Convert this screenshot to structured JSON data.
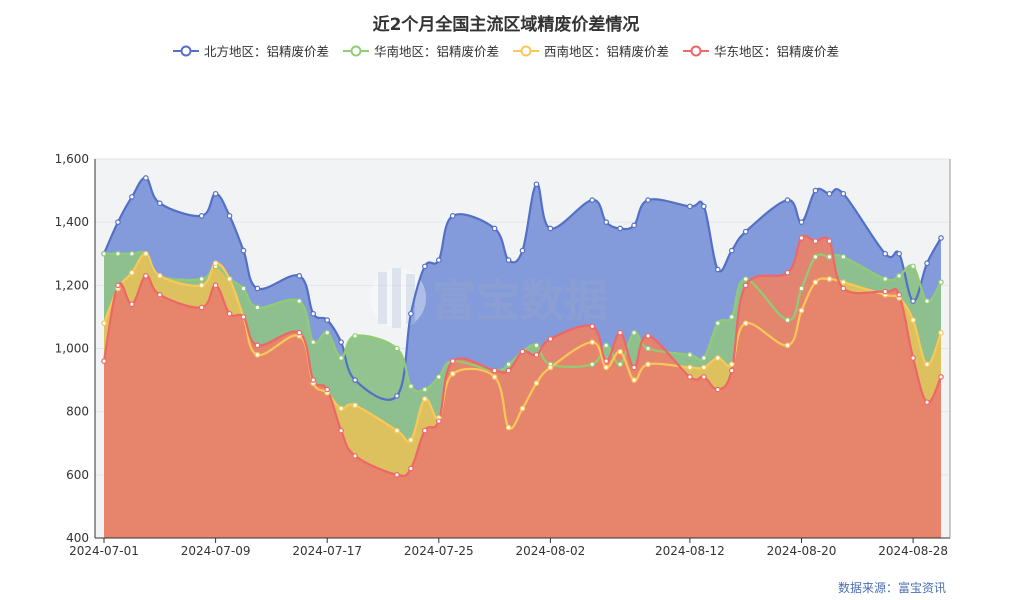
{
  "chart_data": {
    "type": "area",
    "title": "近2个月全国主流区域精废价差情况",
    "xlabel": "",
    "ylabel": "",
    "ylim": [
      400,
      1600
    ],
    "y_ticks": [
      "400",
      "600",
      "800",
      "1,000",
      "1,200",
      "1,400",
      "1,600"
    ],
    "x_tick_labels": [
      "2024-07-01",
      "2024-07-09",
      "2024-07-17",
      "2024-07-25",
      "2024-08-02",
      "2024-08-12",
      "2024-08-20",
      "2024-08-28"
    ],
    "x_tick_dates": [
      "2024-07-01",
      "2024-07-09",
      "2024-07-17",
      "2024-07-25",
      "2024-08-02",
      "2024-08-12",
      "2024-08-20",
      "2024-08-28"
    ],
    "x": [
      "2024-07-01",
      "2024-07-02",
      "2024-07-03",
      "2024-07-04",
      "2024-07-05",
      "2024-07-08",
      "2024-07-09",
      "2024-07-10",
      "2024-07-11",
      "2024-07-12",
      "2024-07-15",
      "2024-07-16",
      "2024-07-17",
      "2024-07-18",
      "2024-07-19",
      "2024-07-22",
      "2024-07-23",
      "2024-07-24",
      "2024-07-25",
      "2024-07-26",
      "2024-07-29",
      "2024-07-30",
      "2024-07-31",
      "2024-08-01",
      "2024-08-02",
      "2024-08-05",
      "2024-08-06",
      "2024-08-07",
      "2024-08-08",
      "2024-08-09",
      "2024-08-12",
      "2024-08-13",
      "2024-08-14",
      "2024-08-15",
      "2024-08-16",
      "2024-08-19",
      "2024-08-20",
      "2024-08-21",
      "2024-08-22",
      "2024-08-23",
      "2024-08-26",
      "2024-08-27",
      "2024-08-28",
      "2024-08-29",
      "2024-08-30"
    ],
    "series": [
      {
        "name": "北方地区：铝精废价差",
        "color": "#5470c6",
        "fill": "#7f97da",
        "values": [
          1300,
          1400,
          1480,
          1540,
          1460,
          1420,
          1490,
          1420,
          1310,
          1190,
          1230,
          1110,
          1090,
          1020,
          900,
          850,
          1110,
          1260,
          1280,
          1420,
          1380,
          1280,
          1310,
          1520,
          1380,
          1470,
          1400,
          1380,
          1390,
          1470,
          1450,
          1450,
          1250,
          1310,
          1370,
          1470,
          1400,
          1500,
          1490,
          1490,
          1300,
          1300,
          1150,
          1270,
          1350
        ]
      },
      {
        "name": "华南地区：铝精废价差",
        "color": "#91cc75",
        "fill": "#8fc18a",
        "values": [
          1300,
          1300,
          1300,
          1300,
          1230,
          1220,
          1260,
          1220,
          1190,
          1130,
          1150,
          1020,
          1050,
          970,
          1040,
          1000,
          880,
          870,
          910,
          960,
          930,
          950,
          990,
          1010,
          950,
          950,
          1010,
          950,
          1050,
          1000,
          980,
          970,
          1080,
          1100,
          1220,
          1090,
          1190,
          1290,
          1290,
          1290,
          1220,
          1230,
          1260,
          1150,
          1210
        ]
      },
      {
        "name": "西南地区：铝精废价差",
        "color": "#fac858",
        "fill": "#e0c15d",
        "values": [
          1080,
          1190,
          1240,
          1300,
          1230,
          1200,
          1270,
          1220,
          1100,
          980,
          1040,
          890,
          860,
          810,
          820,
          740,
          710,
          840,
          780,
          920,
          910,
          750,
          810,
          890,
          940,
          1020,
          940,
          990,
          900,
          950,
          940,
          940,
          970,
          950,
          1080,
          1010,
          1120,
          1210,
          1220,
          1210,
          1170,
          1160,
          1090,
          950,
          1050
        ]
      },
      {
        "name": "华东地区：铝精废价差",
        "color": "#ee6666",
        "fill": "#e7826c",
        "values": [
          960,
          1200,
          1140,
          1230,
          1170,
          1130,
          1200,
          1110,
          1100,
          1010,
          1050,
          900,
          870,
          740,
          660,
          600,
          620,
          740,
          770,
          960,
          930,
          930,
          990,
          980,
          1030,
          1070,
          960,
          1050,
          940,
          1040,
          910,
          910,
          870,
          930,
          1200,
          1240,
          1350,
          1340,
          1340,
          1190,
          1180,
          1170,
          970,
          830,
          910
        ]
      }
    ]
  },
  "source_note": "数据来源：富宝资讯",
  "watermark": "富宝数据"
}
